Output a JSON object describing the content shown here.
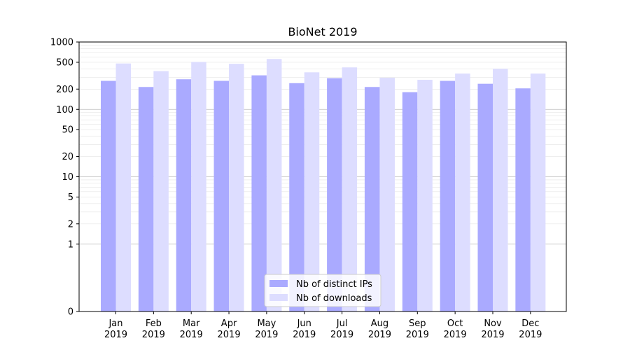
{
  "chart_data": {
    "type": "bar",
    "title": "BioNet 2019",
    "xlabel": "",
    "ylabel": "",
    "scale": "symlog",
    "ylim": [
      0,
      1000
    ],
    "yticks": [
      0,
      1,
      2,
      5,
      10,
      20,
      50,
      100,
      200,
      500,
      1000
    ],
    "categories": [
      {
        "month": "Jan",
        "year": "2019"
      },
      {
        "month": "Feb",
        "year": "2019"
      },
      {
        "month": "Mar",
        "year": "2019"
      },
      {
        "month": "Apr",
        "year": "2019"
      },
      {
        "month": "May",
        "year": "2019"
      },
      {
        "month": "Jun",
        "year": "2019"
      },
      {
        "month": "Jul",
        "year": "2019"
      },
      {
        "month": "Aug",
        "year": "2019"
      },
      {
        "month": "Sep",
        "year": "2019"
      },
      {
        "month": "Oct",
        "year": "2019"
      },
      {
        "month": "Nov",
        "year": "2019"
      },
      {
        "month": "Dec",
        "year": "2019"
      }
    ],
    "series": [
      {
        "name": "Nb of distinct IPs",
        "color": "#aaaaff",
        "values": [
          265,
          215,
          280,
          265,
          320,
          245,
          290,
          215,
          180,
          265,
          240,
          205
        ]
      },
      {
        "name": "Nb of downloads",
        "color": "#ddddff",
        "values": [
          480,
          370,
          505,
          475,
          560,
          355,
          420,
          295,
          275,
          340,
          400,
          340
        ]
      }
    ],
    "grid": true,
    "legend": "lower-center"
  }
}
